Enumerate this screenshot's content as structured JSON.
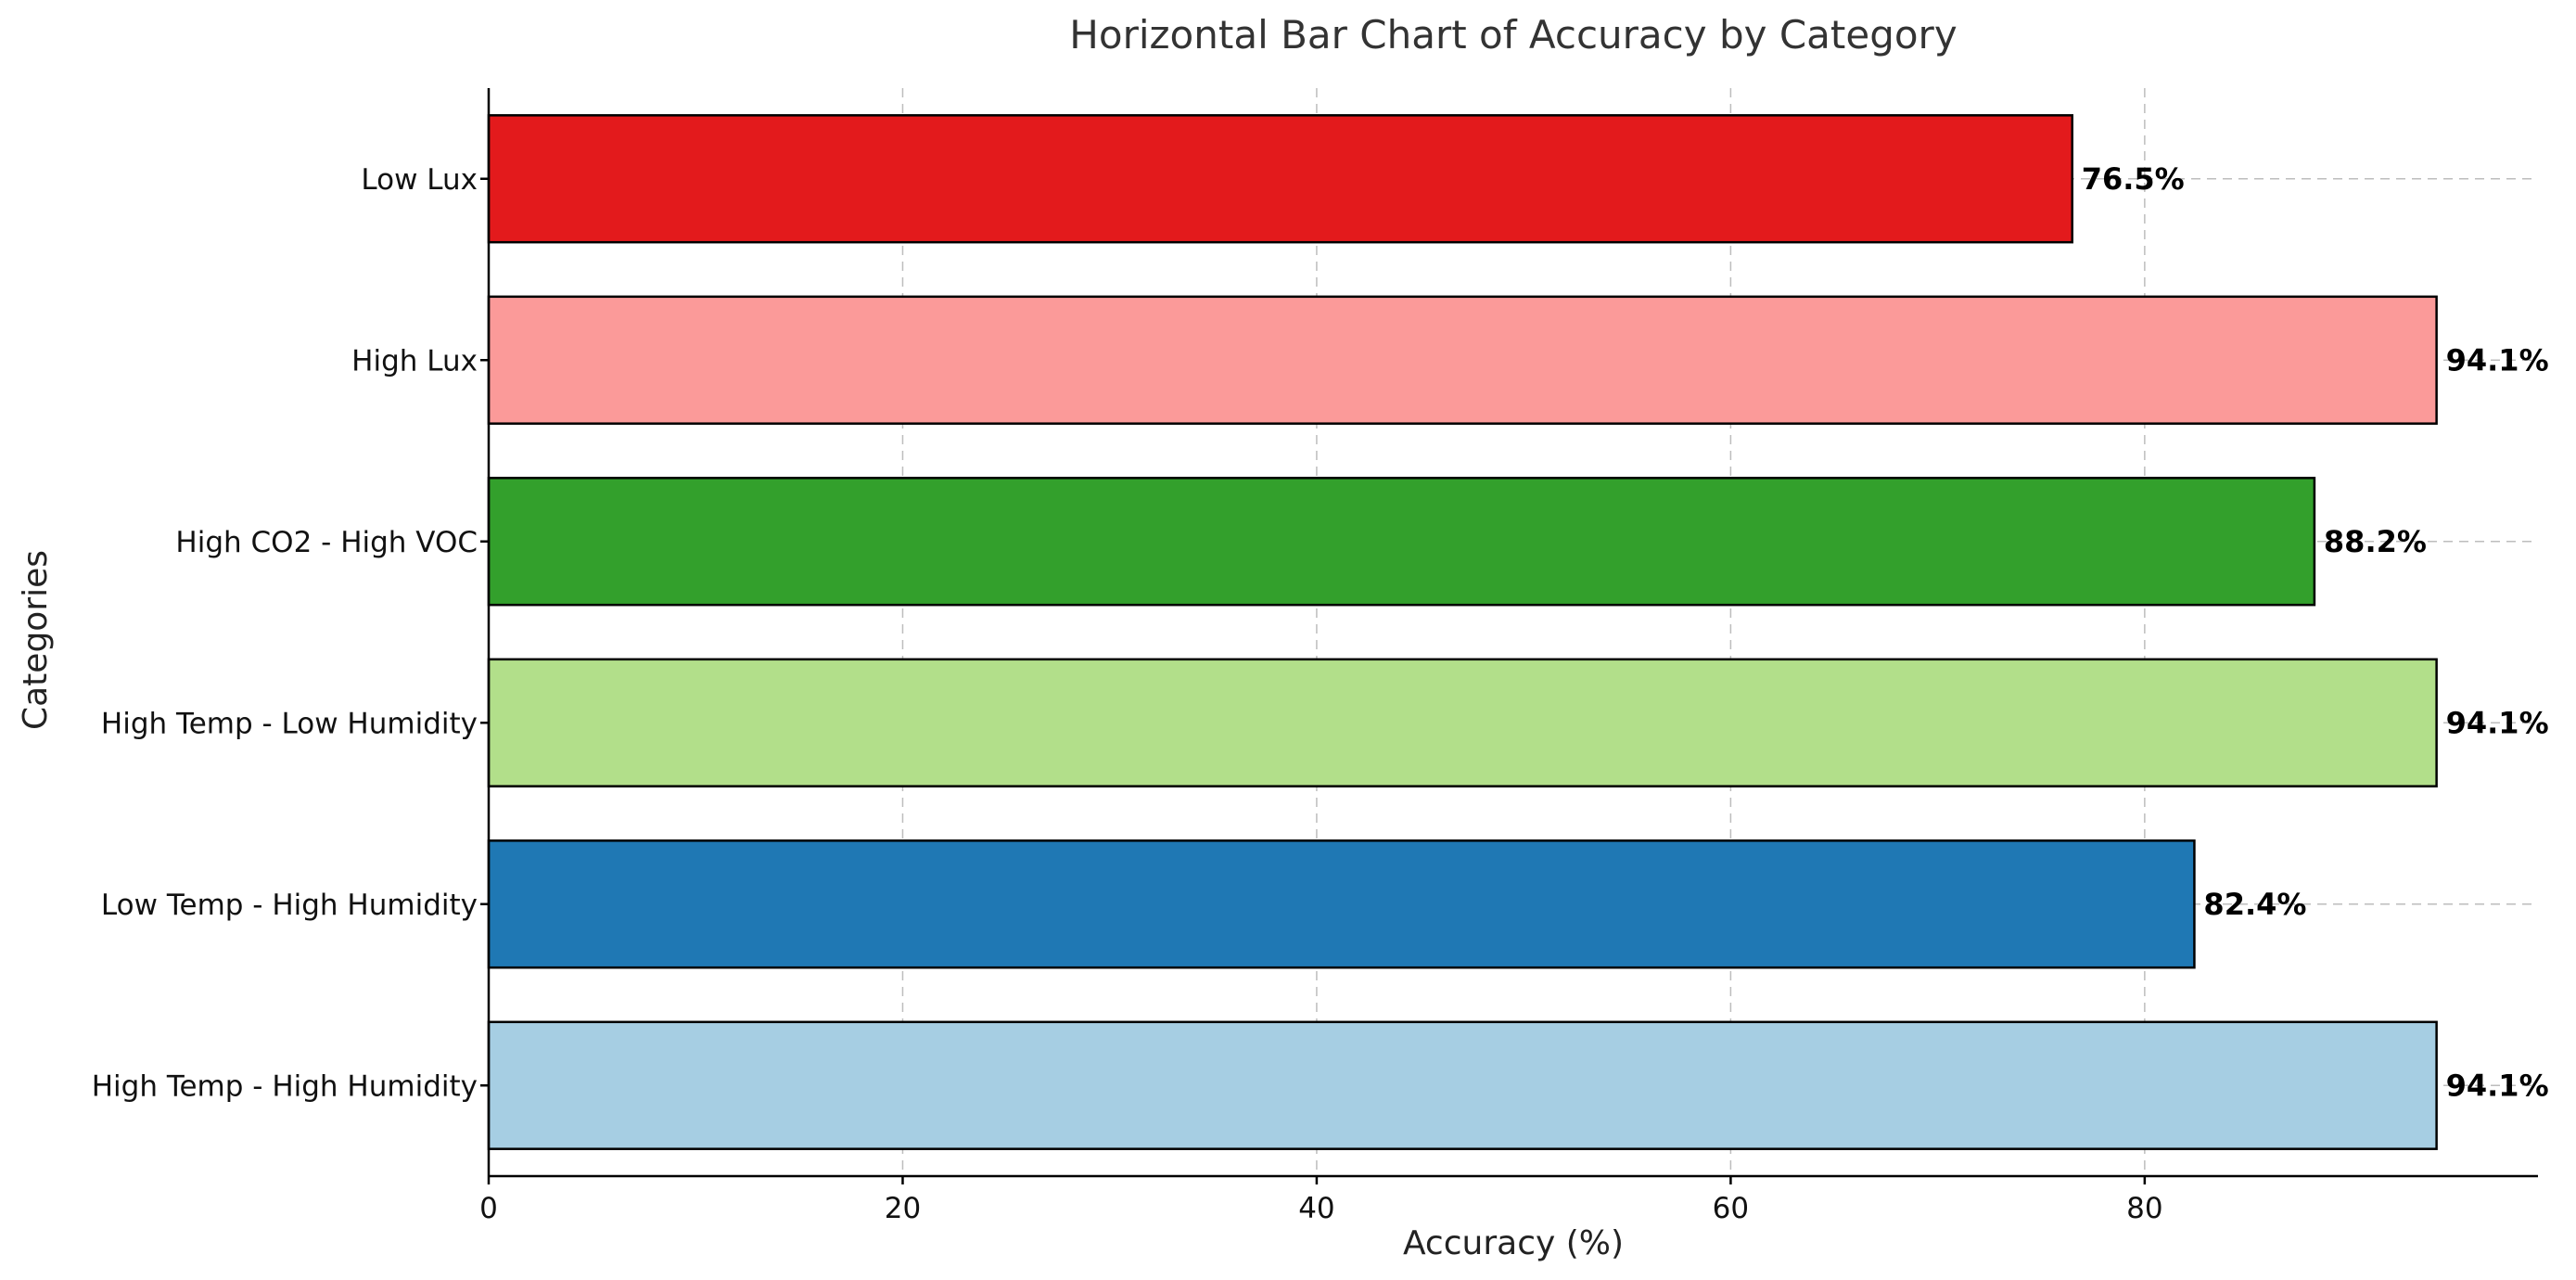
{
  "chart_data": {
    "type": "bar",
    "orientation": "horizontal",
    "title": "Horizontal Bar Chart of Accuracy by Category",
    "xlabel": "Accuracy (%)",
    "ylabel": "Categories",
    "xlim": [
      0,
      99
    ],
    "xticks": [
      0,
      20,
      40,
      60,
      80
    ],
    "grid": true,
    "categories": [
      "High Temp - High Humidity",
      "Low Temp - High Humidity",
      "High Temp - Low Humidity",
      "High CO2 - High VOC",
      "High Lux",
      "Low Lux"
    ],
    "values": [
      94.1,
      82.4,
      94.1,
      88.2,
      94.1,
      76.5
    ],
    "value_labels": [
      "94.1%",
      "82.4%",
      "94.1%",
      "88.2%",
      "94.1%",
      "76.5%"
    ],
    "colors": [
      "#a6cee3",
      "#1f78b4",
      "#b2df8a",
      "#33a02c",
      "#fb9a99",
      "#e31a1c"
    ]
  }
}
